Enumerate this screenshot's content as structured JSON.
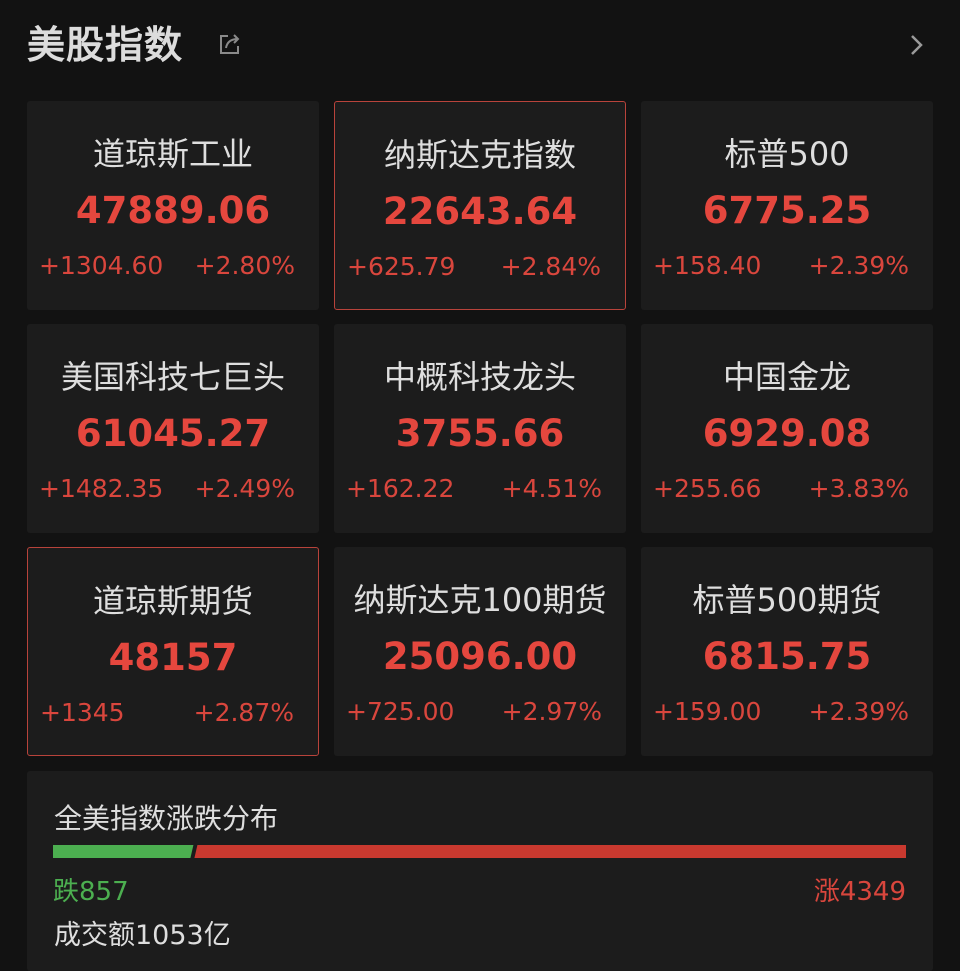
{
  "header": {
    "title": "美股指数",
    "share_icon": "share-icon",
    "more_icon": "chevron-right-icon"
  },
  "indices": [
    {
      "name": "道琼斯工业",
      "value": "47889.06",
      "change": "+1304.60",
      "percent": "+2.80%",
      "selected": false
    },
    {
      "name": "纳斯达克指数",
      "value": "22643.64",
      "change": "+625.79",
      "percent": "+2.84%",
      "selected": true
    },
    {
      "name": "标普500",
      "value": "6775.25",
      "change": "+158.40",
      "percent": "+2.39%",
      "selected": false
    },
    {
      "name": "美国科技七巨头",
      "value": "61045.27",
      "change": "+1482.35",
      "percent": "+2.49%",
      "selected": false
    },
    {
      "name": "中概科技龙头",
      "value": "3755.66",
      "change": "+162.22",
      "percent": "+4.51%",
      "selected": false
    },
    {
      "name": "中国金龙",
      "value": "6929.08",
      "change": "+255.66",
      "percent": "+3.83%",
      "selected": false
    },
    {
      "name": "道琼斯期货",
      "value": "48157",
      "change": "+1345",
      "percent": "+2.87%",
      "selected": true
    },
    {
      "name": "纳斯达克100期货",
      "value": "25096.00",
      "change": "+725.00",
      "percent": "+2.97%",
      "selected": false
    },
    {
      "name": "标普500期货",
      "value": "6815.75",
      "change": "+159.00",
      "percent": "+2.39%",
      "selected": false
    }
  ],
  "distribution": {
    "title": "全美指数涨跌分布",
    "down_label": "跌857",
    "up_label": "涨4349",
    "down_count": 857,
    "up_count": 4349,
    "volume": "成交额1053亿",
    "colors": {
      "down": "#4caf50",
      "up": "#c9392f"
    }
  },
  "colors": {
    "background": "#121212",
    "card": "#1c1c1c",
    "up_text": "#e5473e",
    "selected_border": "#b8433b"
  }
}
